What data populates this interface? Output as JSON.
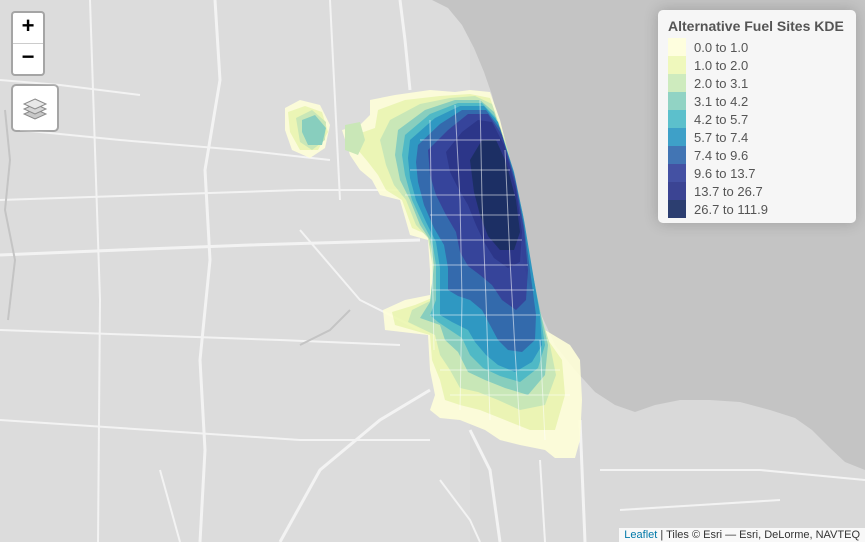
{
  "legend": {
    "title": "Alternative Fuel Sites KDE",
    "items": [
      {
        "label": "0.0 to 1.0",
        "color": "#ffffd9"
      },
      {
        "label": "1.0 to 2.0",
        "color": "#edf8b1"
      },
      {
        "label": "2.0 to 3.1",
        "color": "#c7e9b4"
      },
      {
        "label": "3.1 to 4.2",
        "color": "#7fcdbb"
      },
      {
        "label": "4.2 to 5.7",
        "color": "#41b6c4"
      },
      {
        "label": "5.7 to 7.4",
        "color": "#1d91c0"
      },
      {
        "label": "7.4 to 9.6",
        "color": "#225ea8"
      },
      {
        "label": "9.6 to 13.7",
        "color": "#253494"
      },
      {
        "label": "13.7 to 26.7",
        "color": "#1a2581"
      },
      {
        "label": "26.7 to 111.9",
        "color": "#081d58"
      }
    ]
  },
  "controls": {
    "zoom_in": "+",
    "zoom_out": "−"
  },
  "attribution": {
    "link_text": "Leaflet",
    "text": " | Tiles © Esri — Esri, DeLorme, NAVTEQ"
  },
  "map": {
    "land_color": "#d9d9d9",
    "water_color": "#c4c4c4",
    "road_color": "#f2f2f2"
  }
}
